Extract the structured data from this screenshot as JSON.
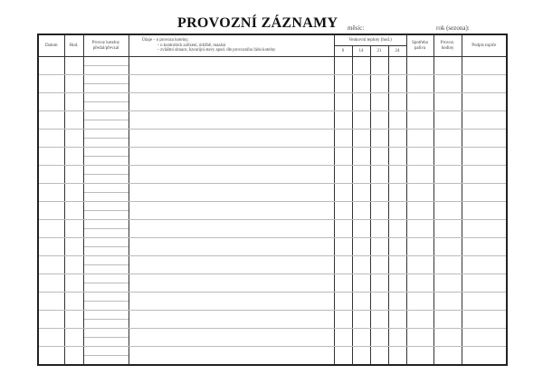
{
  "title": "PROVOZNÍ ZÁZNAMY",
  "month_label": "měsíc:",
  "year_label": "rok (sezona):",
  "columns": {
    "datum": "Datum",
    "hod": "Hod.",
    "provoz_kotelny": [
      "Provoz kotelny",
      "předal/převzal"
    ],
    "udaje": [
      "Údaje – o provozu kotelny,",
      "– o kontrolách zařízení, údržbě, mazání",
      "– zvláštní situace, havarijní stavy apod. dle provozního řádu kotelny"
    ],
    "venkovni_teploty": "Venkovní teploty (hod.)",
    "hours": [
      "6",
      "14",
      "21",
      "24"
    ],
    "spotreba": [
      "Spotřeba",
      "paliva"
    ],
    "provoz_hodiny": [
      "Provoz.",
      "hodiny"
    ],
    "podpis": "Podpis topiče"
  },
  "row_count": 17
}
